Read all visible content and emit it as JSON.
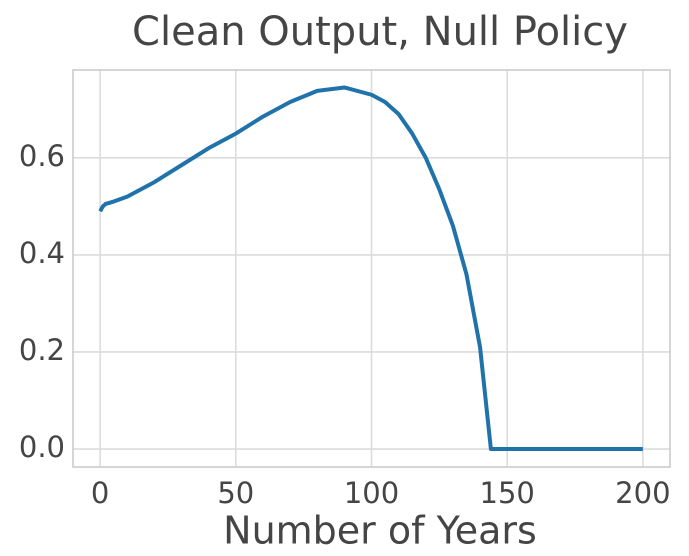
{
  "chart_data": {
    "type": "line",
    "title": "Clean Output, Null Policy",
    "xlabel": "Number of Years",
    "x": [
      0,
      1,
      2,
      5,
      10,
      20,
      30,
      40,
      50,
      60,
      70,
      80,
      90,
      100,
      105,
      110,
      115,
      120,
      125,
      130,
      135,
      140,
      144,
      150,
      175,
      200
    ],
    "series": [
      {
        "name": "Clean Output",
        "color": "#1f72aa",
        "values": [
          0.49,
          0.5,
          0.505,
          0.51,
          0.52,
          0.55,
          0.585,
          0.62,
          0.65,
          0.685,
          0.715,
          0.738,
          0.745,
          0.73,
          0.715,
          0.69,
          0.65,
          0.6,
          0.535,
          0.46,
          0.36,
          0.21,
          0,
          0,
          0,
          0
        ]
      }
    ],
    "xlim": [
      -10,
      210
    ],
    "ylim": [
      -0.037,
      0.781
    ],
    "xticks": [
      0,
      50,
      100,
      150,
      200
    ],
    "yticks": [
      {
        "value": 0,
        "label": "0.0"
      },
      {
        "value": 0.2,
        "label": "0.2"
      },
      {
        "value": 0.4,
        "label": "0.4"
      },
      {
        "value": 0.6,
        "label": "0.6"
      }
    ],
    "grid": true
  }
}
